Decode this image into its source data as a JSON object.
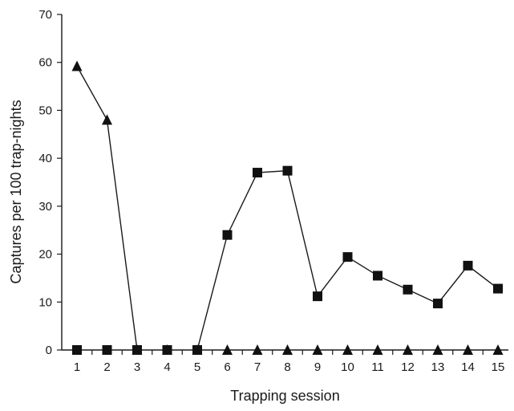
{
  "chart_data": {
    "type": "line",
    "xlabel": "Trapping session",
    "ylabel": "Captures per 100 trap-nights",
    "x": [
      1,
      2,
      3,
      4,
      5,
      6,
      7,
      8,
      9,
      10,
      11,
      12,
      13,
      14,
      15
    ],
    "ylim": [
      0,
      70
    ],
    "yticks": [
      0,
      10,
      20,
      30,
      40,
      50,
      60,
      70
    ],
    "grid": false,
    "series": [
      {
        "marker": "triangle",
        "color": "#111111",
        "values": [
          59.2,
          48,
          0,
          0,
          0,
          0,
          0,
          0,
          0,
          0,
          0,
          0,
          0,
          0,
          0
        ]
      },
      {
        "marker": "square",
        "color": "#111111",
        "values": [
          0,
          0,
          0,
          0,
          0,
          24,
          37,
          37.4,
          11.2,
          19.4,
          15.5,
          12.6,
          9.7,
          17.6,
          12.8
        ]
      }
    ]
  }
}
